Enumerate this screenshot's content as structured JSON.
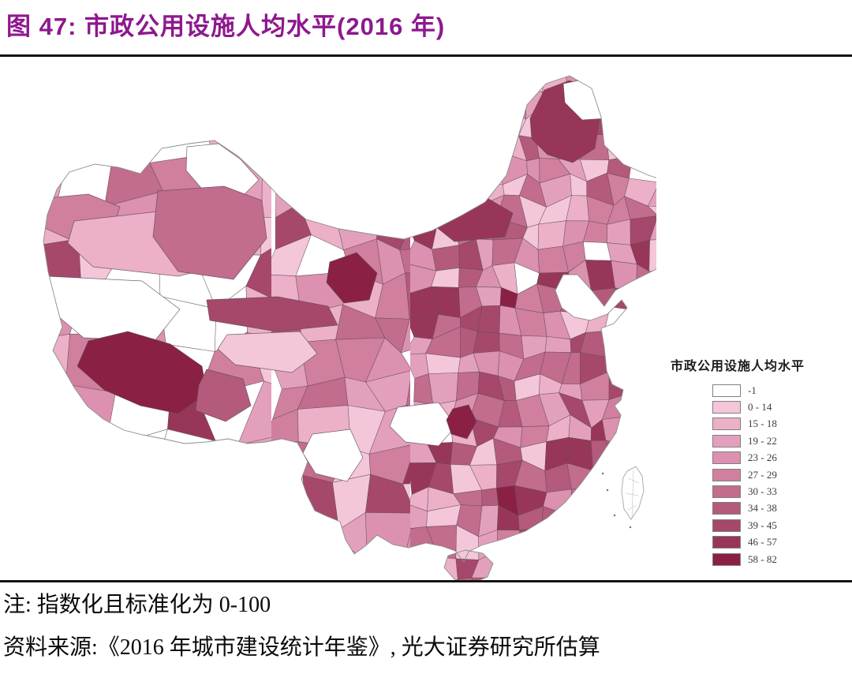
{
  "figure": {
    "title": "图 47:  市政公用设施人均水平(2016 年)",
    "title_color": "#8E188E",
    "note": "注: 指数化且标准化为 0-100",
    "source": "资料来源:《2016 年城市建设统计年鉴》, 光大证券研究所估算"
  },
  "legend": {
    "title": "市政公用设施人均水平"
  },
  "chart_data": {
    "type": "choropleth_map",
    "title": "市政公用设施人均水平(2016 年)",
    "geography": "中国地级行政区划",
    "year": "2016",
    "value_note": "指数化且标准化为 0-100",
    "no_data_value": -1,
    "legend_position": "right",
    "bins": [
      {
        "label": "-1",
        "range": [
          -1,
          -1
        ],
        "color": "#FFFFFF"
      },
      {
        "label": "0 - 14",
        "range": [
          0,
          14
        ],
        "color": "#F4C6DA"
      },
      {
        "label": "15 - 18",
        "range": [
          15,
          18
        ],
        "color": "#ECB0C9"
      },
      {
        "label": "19 - 22",
        "range": [
          19,
          22
        ],
        "color": "#E3A0BC"
      },
      {
        "label": "23 - 26",
        "range": [
          23,
          26
        ],
        "color": "#DB91AF"
      },
      {
        "label": "27 - 29",
        "range": [
          27,
          29
        ],
        "color": "#D07F9F"
      },
      {
        "label": "30 - 33",
        "range": [
          30,
          33
        ],
        "color": "#C26C8E"
      },
      {
        "label": "34 - 38",
        "range": [
          34,
          38
        ],
        "color": "#B45A7D"
      },
      {
        "label": "39 - 45",
        "range": [
          39,
          45
        ],
        "color": "#A6486B"
      },
      {
        "label": "46 - 57",
        "range": [
          46,
          57
        ],
        "color": "#983659"
      },
      {
        "label": "58 - 82",
        "range": [
          58,
          82
        ],
        "color": "#8A2145"
      }
    ]
  }
}
